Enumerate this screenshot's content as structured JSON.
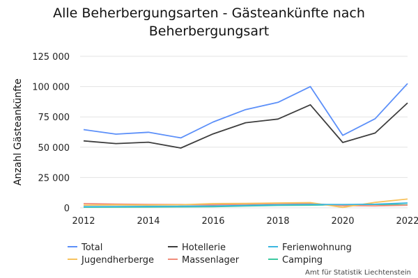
{
  "chart_data": {
    "type": "line",
    "title_lines": [
      "Alle Beherbergungsarten - Gästeankünfte nach",
      "Beherbergungsart"
    ],
    "xlabel": "",
    "ylabel": "Anzahl Gästeankünfte",
    "x": [
      2012,
      2013,
      2014,
      2015,
      2016,
      2017,
      2018,
      2019,
      2020,
      2021,
      2022
    ],
    "x_ticks": [
      "2012",
      "2014",
      "2016",
      "2018",
      "2020",
      "2022"
    ],
    "y_ticks": [
      "0",
      "25 000",
      "50 000",
      "75 000",
      "100 000",
      "125 000"
    ],
    "ylim": [
      0,
      125000
    ],
    "grid": true,
    "legend_position": "bottom",
    "series": [
      {
        "name": "Total",
        "color": "#5b8ff9",
        "values": [
          64500,
          60800,
          62300,
          57700,
          70800,
          81000,
          87000,
          100000,
          59800,
          73500,
          102500
        ]
      },
      {
        "name": "Hotellerie",
        "color": "#3d3d3d",
        "values": [
          55200,
          53000,
          54100,
          49300,
          61000,
          70200,
          73200,
          85000,
          53900,
          61700,
          86500
        ]
      },
      {
        "name": "Ferienwohnung",
        "color": "#3bb6e0",
        "values": [
          1000,
          1100,
          1200,
          1300,
          1500,
          2000,
          2500,
          2800,
          2700,
          3000,
          4000
        ]
      },
      {
        "name": "Jugendherberge",
        "color": "#f7c25c",
        "values": [
          2200,
          2400,
          2300,
          2500,
          3500,
          3600,
          4000,
          4300,
          400,
          4500,
          7200
        ]
      },
      {
        "name": "Massenlager",
        "color": "#f08c7a",
        "values": [
          3500,
          3100,
          2800,
          2700,
          2500,
          3000,
          3500,
          3500,
          1800,
          1600,
          2200
        ]
      },
      {
        "name": "Camping",
        "color": "#3cc9a0",
        "values": [
          500,
          600,
          700,
          800,
          1000,
          1500,
          2000,
          2200,
          2600,
          2800,
          2600
        ]
      }
    ],
    "source": "Amt für Statistik Liechtenstein"
  }
}
